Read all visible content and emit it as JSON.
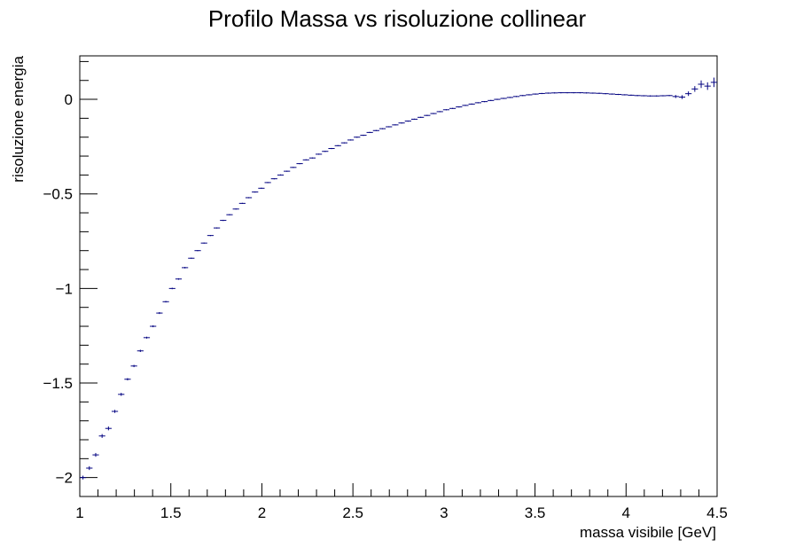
{
  "chart_data": {
    "type": "scatter",
    "title": "Profilo Massa vs risoluzione collinear",
    "xlabel": "massa visibile [GeV]",
    "ylabel": "risoluzione energia",
    "xlim": [
      1.0,
      4.5
    ],
    "ylim": [
      -2.1,
      0.23
    ],
    "x_ticks": [
      1,
      1.5,
      2,
      2.5,
      3,
      3.5,
      4,
      4.5
    ],
    "x_tick_labels": [
      "1",
      "1.5",
      "2",
      "2.5",
      "3",
      "3.5",
      "4",
      "4.5"
    ],
    "y_ticks": [
      -2,
      -1.5,
      -1,
      -0.5,
      0
    ],
    "y_tick_labels": [
      "−2",
      "−1.5",
      "−1",
      "−0.5",
      "0"
    ],
    "grid": false,
    "legend": "none",
    "bin_width": 0.035,
    "marker_color": "#000080",
    "series": [
      {
        "x": [
          1.0175,
          1.0525,
          1.0875,
          1.1225,
          1.1575,
          1.1925,
          1.2275,
          1.2625,
          1.2975,
          1.3325,
          1.3675,
          1.4025,
          1.4375,
          1.4725,
          1.5075,
          1.5425,
          1.5775,
          1.6125,
          1.6475,
          1.6825,
          1.7175,
          1.7525,
          1.7875,
          1.8225,
          1.8575,
          1.8925,
          1.9275,
          1.9625,
          1.9975,
          2.0325,
          2.0675,
          2.1025,
          2.1375,
          2.1725,
          2.2075,
          2.2425,
          2.2775,
          2.3125,
          2.3475,
          2.3825,
          2.4175,
          2.4525,
          2.4875,
          2.5225,
          2.5575,
          2.5925,
          2.6275,
          2.6625,
          2.6975,
          2.7325,
          2.7675,
          2.8025,
          2.8375,
          2.8725,
          2.9075,
          2.9425,
          2.9775,
          3.0125,
          3.0475,
          3.0825,
          3.1175,
          3.1525,
          3.1875,
          3.2225,
          3.2575,
          3.2925,
          3.3275,
          3.3625,
          3.3975,
          3.4325,
          3.4675,
          3.5025,
          3.5375,
          3.5725,
          3.6075,
          3.6425,
          3.6775,
          3.7125,
          3.7475,
          3.7825,
          3.8175,
          3.8525,
          3.8875,
          3.9225,
          3.9575,
          3.9925,
          4.0275,
          4.0625,
          4.0975,
          4.1325,
          4.1675,
          4.2025,
          4.2375,
          4.2725,
          4.3075,
          4.3425,
          4.3775,
          4.4125,
          4.4475,
          4.4825
        ],
        "y": [
          -2.0,
          -1.95,
          -1.88,
          -1.78,
          -1.74,
          -1.65,
          -1.56,
          -1.48,
          -1.41,
          -1.33,
          -1.26,
          -1.2,
          -1.13,
          -1.07,
          -1.0,
          -0.95,
          -0.89,
          -0.84,
          -0.8,
          -0.76,
          -0.72,
          -0.68,
          -0.64,
          -0.61,
          -0.58,
          -0.55,
          -0.52,
          -0.49,
          -0.47,
          -0.44,
          -0.42,
          -0.4,
          -0.38,
          -0.36,
          -0.34,
          -0.32,
          -0.31,
          -0.29,
          -0.275,
          -0.26,
          -0.245,
          -0.23,
          -0.215,
          -0.2,
          -0.19,
          -0.175,
          -0.165,
          -0.155,
          -0.145,
          -0.135,
          -0.125,
          -0.115,
          -0.105,
          -0.095,
          -0.085,
          -0.075,
          -0.065,
          -0.055,
          -0.048,
          -0.04,
          -0.032,
          -0.025,
          -0.018,
          -0.012,
          -0.006,
          0.0,
          0.005,
          0.01,
          0.015,
          0.02,
          0.024,
          0.028,
          0.031,
          0.033,
          0.034,
          0.035,
          0.035,
          0.035,
          0.035,
          0.034,
          0.033,
          0.032,
          0.03,
          0.028,
          0.026,
          0.024,
          0.022,
          0.02,
          0.019,
          0.018,
          0.018,
          0.019,
          0.02,
          0.015,
          0.012,
          0.03,
          0.055,
          0.08,
          0.07,
          0.09
        ],
        "yerr": [
          0.01,
          0.01,
          0.01,
          0.01,
          0.01,
          0.008,
          0.008,
          0.006,
          0.006,
          0.006,
          0.005,
          0.005,
          0.005,
          0.004,
          0.004,
          0.004,
          0.004,
          0.003,
          0.003,
          0.003,
          0.003,
          0.003,
          0.003,
          0.003,
          0.003,
          0.003,
          0.003,
          0.003,
          0.003,
          0.003,
          0.003,
          0.003,
          0.003,
          0.003,
          0.003,
          0.003,
          0.003,
          0.003,
          0.003,
          0.003,
          0.003,
          0.003,
          0.003,
          0.003,
          0.003,
          0.003,
          0.003,
          0.003,
          0.003,
          0.003,
          0.003,
          0.003,
          0.003,
          0.003,
          0.003,
          0.003,
          0.003,
          0.003,
          0.003,
          0.003,
          0.003,
          0.003,
          0.003,
          0.003,
          0.003,
          0.003,
          0.003,
          0.003,
          0.003,
          0.003,
          0.003,
          0.003,
          0.003,
          0.003,
          0.003,
          0.003,
          0.003,
          0.003,
          0.003,
          0.003,
          0.003,
          0.003,
          0.003,
          0.003,
          0.003,
          0.003,
          0.003,
          0.003,
          0.003,
          0.003,
          0.003,
          0.003,
          0.003,
          0.008,
          0.01,
          0.012,
          0.015,
          0.02,
          0.02,
          0.025
        ]
      }
    ]
  }
}
